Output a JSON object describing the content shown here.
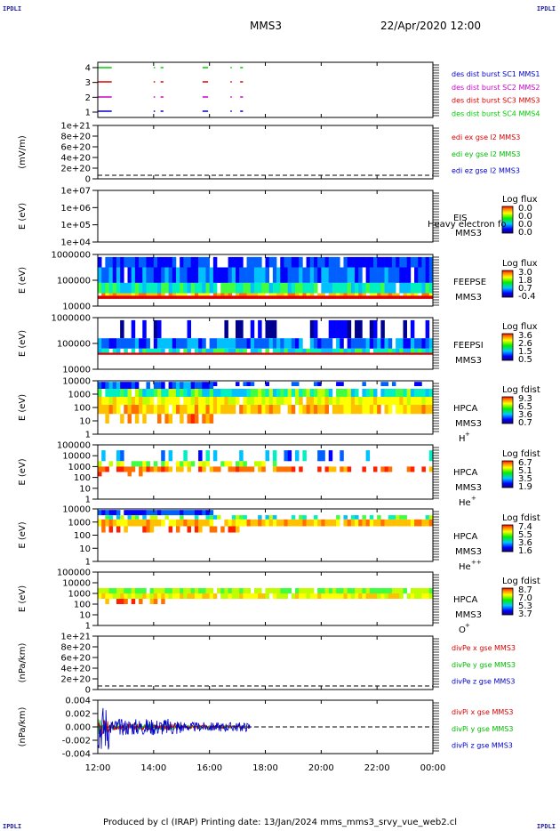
{
  "header": {
    "corner_tl": "IPDLI",
    "corner_tr": "IPDLI",
    "corner_bl": "IPDLI",
    "corner_br": "IPDLI",
    "spacecraft": "MMS3",
    "datetime": "22/Apr/2020 12:00"
  },
  "footer": {
    "text": "Produced by cl (IRAP)   Printing date: 13/Jan/2024   mms_mms3_srvy_vue_web2.cl"
  },
  "colors": {
    "mms1": "#0000cc",
    "mms2": "#cc00cc",
    "mms3": "#dd0000",
    "mms4": "#00cc00",
    "red": "#dd0000",
    "green": "#00bb00",
    "blue": "#0000cc"
  },
  "chart_data": {
    "type": "multi-panel time series",
    "x_tick_labels": [
      "12:00",
      "14:00",
      "16:00",
      "18:00",
      "20:00",
      "22:00",
      "00:00"
    ],
    "x_hours": [
      12,
      14,
      16,
      18,
      20,
      22,
      24
    ],
    "panels": [
      {
        "id": "burst",
        "type": "availability",
        "yticks": [
          "4",
          "3",
          "2",
          "1"
        ],
        "legend": [
          {
            "text": "des dist burst SC1 MMS1",
            "color": "#0000cc"
          },
          {
            "text": "des dist burst SC2 MMS2",
            "color": "#cc00cc"
          },
          {
            "text": "des dist burst SC3 MMS3",
            "color": "#dd0000"
          },
          {
            "text": "des dist burst SC4 MMS4",
            "color": "#00cc00"
          }
        ],
        "intervals_hours": [
          [
            12.0,
            12.5
          ],
          [
            14.0,
            14.05
          ],
          [
            14.25,
            14.35
          ],
          [
            15.75,
            15.95
          ],
          [
            16.75,
            16.8
          ],
          [
            17.1,
            17.2
          ]
        ]
      },
      {
        "id": "efield",
        "type": "line",
        "ylabel": "(mV/m)",
        "yticks": [
          "1e+21",
          "8e+20",
          "6e+20",
          "4e+20",
          "2e+20",
          "0"
        ],
        "legend": [
          {
            "text": "edi ex gse l2 MMS3",
            "color": "#dd0000"
          },
          {
            "text": "edi ey gse l2 MMS3",
            "color": "#00bb00"
          },
          {
            "text": "edi ez gse l2 MMS3",
            "color": "#0000cc"
          }
        ]
      },
      {
        "id": "eis",
        "type": "heatmap",
        "ylabel": "E (eV)",
        "yticks": [
          "1e+07",
          "1e+06",
          "1e+05",
          "1e+04"
        ],
        "name": "EIS",
        "sub": "MMS3",
        "extra": "Heavy electron fo",
        "cb_title": "Log flux",
        "cb_ticks": [
          "0.0",
          "0.0",
          "0.0",
          "0.0"
        ]
      },
      {
        "id": "feepse",
        "type": "heatmap",
        "ylabel": "E (eV)",
        "yticks": [
          "1000000",
          "100000",
          "10000"
        ],
        "name": "FEEPSE",
        "sub": "MMS3",
        "cb_title": "Log flux",
        "cb_ticks": [
          "3.0",
          "1.8",
          "0.7",
          "-0.4"
        ]
      },
      {
        "id": "feepsi",
        "type": "heatmap",
        "ylabel": "E (eV)",
        "yticks": [
          "1000000",
          "100000",
          "10000"
        ],
        "name": "FEEPSI",
        "sub": "MMS3",
        "cb_title": "Log flux",
        "cb_ticks": [
          "3.6",
          "2.6",
          "1.5",
          "0.5"
        ]
      },
      {
        "id": "hpca_h",
        "type": "heatmap",
        "ylabel": "E (eV)",
        "yticks": [
          "10000",
          "1000",
          "100",
          "10",
          "1"
        ],
        "name": "HPCA",
        "sub": "MMS3",
        "species": "H",
        "species_sup": "+",
        "cb_title": "Log fdist",
        "cb_ticks": [
          "9.3",
          "6.5",
          "3.6",
          "0.7"
        ]
      },
      {
        "id": "hpca_he",
        "type": "heatmap",
        "ylabel": "E (eV)",
        "yticks": [
          "100000",
          "10000",
          "1000",
          "100",
          "10",
          "1"
        ],
        "name": "HPCA",
        "sub": "MMS3",
        "species": "He",
        "species_sup": "+",
        "cb_title": "Log fdist",
        "cb_ticks": [
          "6.7",
          "5.1",
          "3.5",
          "1.9"
        ]
      },
      {
        "id": "hpca_hepp",
        "type": "heatmap",
        "ylabel": "E (eV)",
        "yticks": [
          "10000",
          "1000",
          "100",
          "10",
          "1"
        ],
        "name": "HPCA",
        "sub": "MMS3",
        "species": "He",
        "species_sup": "++",
        "cb_title": "Log fdist",
        "cb_ticks": [
          "7.4",
          "5.5",
          "3.6",
          "1.6"
        ]
      },
      {
        "id": "hpca_o",
        "type": "heatmap",
        "ylabel": "E (eV)",
        "yticks": [
          "100000",
          "10000",
          "1000",
          "100",
          "10",
          "1"
        ],
        "name": "HPCA",
        "sub": "MMS3",
        "species": "O",
        "species_sup": "+",
        "cb_title": "Log fdist",
        "cb_ticks": [
          "8.7",
          "7.0",
          "5.3",
          "3.7"
        ]
      },
      {
        "id": "divpe",
        "type": "line",
        "ylabel": "(nPa/km)",
        "yticks": [
          "1e+21",
          "8e+20",
          "6e+20",
          "4e+20",
          "2e+20",
          "0"
        ],
        "legend": [
          {
            "text": "divPe x gse MMS3",
            "color": "#dd0000"
          },
          {
            "text": "divPe y gse MMS3",
            "color": "#00bb00"
          },
          {
            "text": "divPe z gse MMS3",
            "color": "#0000cc"
          }
        ]
      },
      {
        "id": "divpi",
        "type": "line",
        "ylabel": "(nPa/km)",
        "yticks": [
          "0.004",
          "0.002",
          "0.000",
          "-0.002",
          "-0.004"
        ],
        "ylim": [
          -0.004,
          0.004
        ],
        "data_end_hour": 17.45,
        "legend": [
          {
            "text": "divPi x gse MMS3",
            "color": "#dd0000"
          },
          {
            "text": "divPi y gse MMS3",
            "color": "#00bb00"
          },
          {
            "text": "divPi z gse MMS3",
            "color": "#0000cc"
          }
        ]
      }
    ]
  }
}
